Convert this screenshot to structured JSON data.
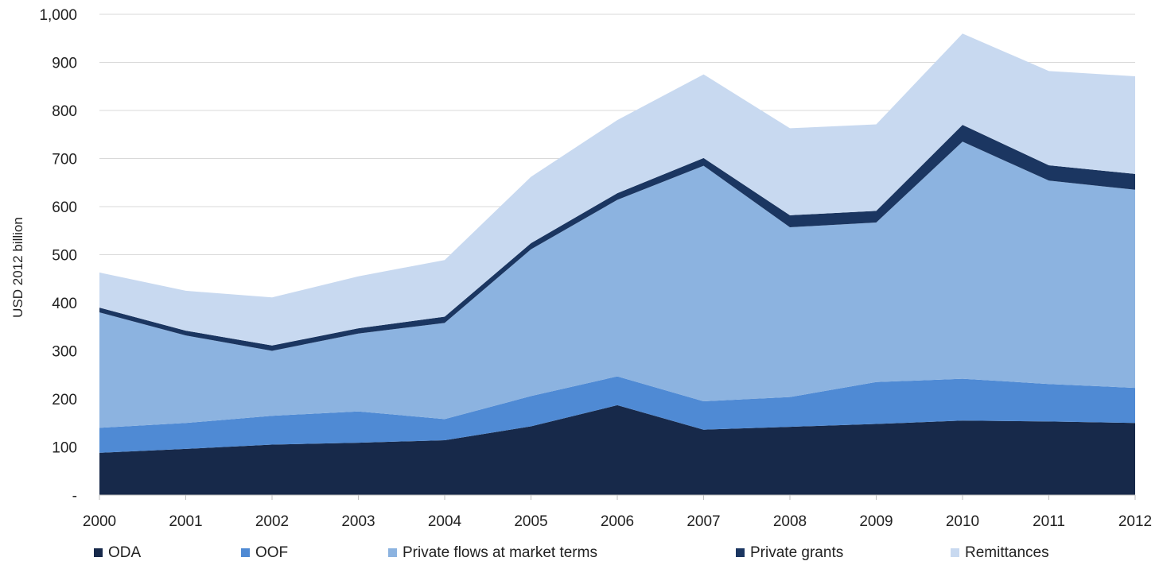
{
  "chart_data": {
    "type": "area",
    "stacked": true,
    "title": "",
    "xlabel": "",
    "ylabel": "USD 2012 billion",
    "ylim": [
      0,
      1000
    ],
    "y_ticks": [
      {
        "value": 0,
        "label": "-"
      },
      {
        "value": 100,
        "label": "100"
      },
      {
        "value": 200,
        "label": "200"
      },
      {
        "value": 300,
        "label": "300"
      },
      {
        "value": 400,
        "label": "400"
      },
      {
        "value": 500,
        "label": "500"
      },
      {
        "value": 600,
        "label": "600"
      },
      {
        "value": 700,
        "label": "700"
      },
      {
        "value": 800,
        "label": "800"
      },
      {
        "value": 900,
        "label": "900"
      },
      {
        "value": 1000,
        "label": "1,000"
      }
    ],
    "grid": true,
    "legend_position": "bottom",
    "categories": [
      "2000",
      "2001",
      "2002",
      "2003",
      "2004",
      "2005",
      "2006",
      "2007",
      "2008",
      "2009",
      "2010",
      "2011",
      "2012"
    ],
    "series": [
      {
        "name": "ODA",
        "color": "#17294a",
        "values": [
          88,
          96,
          105,
          109,
          114,
          143,
          187,
          136,
          142,
          148,
          155,
          153,
          150
        ]
      },
      {
        "name": "OOF",
        "color": "#4f8ad4",
        "values": [
          52,
          54,
          60,
          65,
          44,
          63,
          60,
          59,
          62,
          87,
          87,
          78,
          73
        ]
      },
      {
        "name": "Private flows at market terms",
        "color": "#8cb3e0",
        "values": [
          240,
          182,
          135,
          162,
          200,
          305,
          367,
          490,
          353,
          332,
          493,
          423,
          412
        ]
      },
      {
        "name": "Private grants",
        "color": "#1b3661",
        "values": [
          10,
          10,
          11,
          11,
          13,
          13,
          14,
          16,
          25,
          24,
          35,
          32,
          33
        ]
      },
      {
        "name": "Remittances",
        "color": "#c8d9f0",
        "values": [
          73,
          83,
          100,
          108,
          118,
          138,
          152,
          174,
          181,
          180,
          190,
          196,
          203
        ]
      }
    ]
  }
}
